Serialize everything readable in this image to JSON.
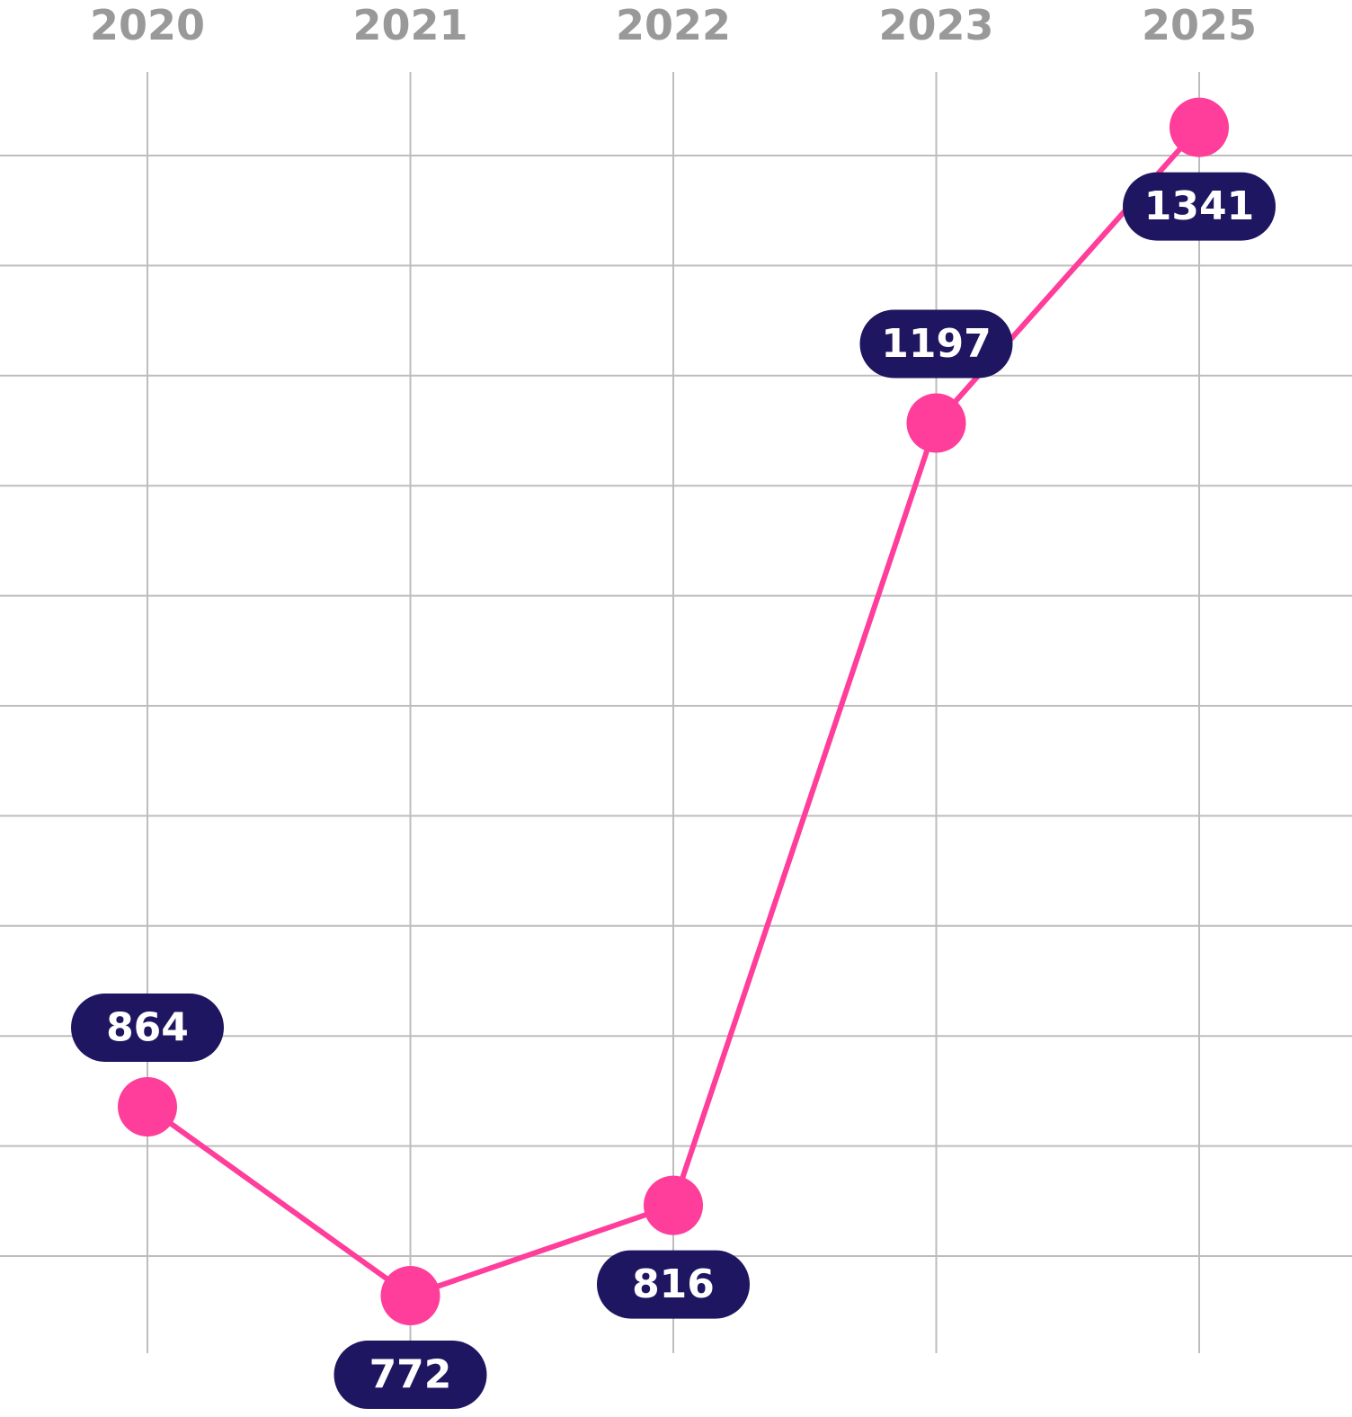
{
  "chart_data": {
    "type": "line",
    "categories": [
      "2020",
      "2021",
      "2022",
      "2023",
      "2025"
    ],
    "series": [
      {
        "name": null,
        "color": "#ff3d9a",
        "values": [
          864,
          772,
          816,
          1197,
          1341
        ]
      }
    ],
    "ylim": [
      744,
      1368
    ],
    "label_color": "#1e1660",
    "grid": true
  }
}
